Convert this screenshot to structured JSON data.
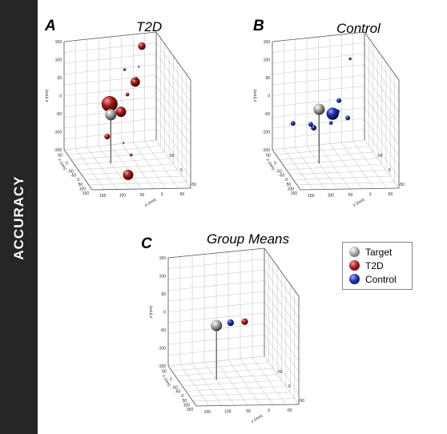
{
  "side_label": "ACCURACY",
  "colors": {
    "target": "#a9a9a9",
    "t2d": "#a81a1a",
    "control": "#1f2fa8",
    "sidebar": "#262626"
  },
  "legend": [
    {
      "label": "Target",
      "color": "#a9a9a9"
    },
    {
      "label": "T2D",
      "color": "#a81a1a"
    },
    {
      "label": "Control",
      "color": "#1f2fa8"
    }
  ],
  "chart_data": [
    {
      "type": "scatter",
      "panel": "A",
      "title": "T2D",
      "zlabel": "z (mm)",
      "ylabel": "y (mm)",
      "xlabel": "x (mm)",
      "zlim": [
        -150,
        150
      ],
      "z_ticks": [
        "150",
        "100",
        "50",
        "0",
        "-50",
        "-100",
        "-150"
      ],
      "x_ticks": [
        "50",
        "0",
        "-50"
      ],
      "y_ticks": [
        "150",
        "100",
        "50",
        "0",
        "-50"
      ],
      "grid": true,
      "series": [
        {
          "name": "T2D",
          "points": [
            {
              "x": 120,
              "y": 50,
              "z": 115,
              "size": 8
            },
            {
              "x": 80,
              "y": 20,
              "z": 38,
              "size": 4
            },
            {
              "x": 95,
              "y": 25,
              "z": 20,
              "size": 10
            },
            {
              "x": 110,
              "y": -10,
              "z": 55,
              "size": 3
            },
            {
              "x": 100,
              "y": 0,
              "z": -15,
              "size": 4
            },
            {
              "x": 60,
              "y": -40,
              "z": -40,
              "size": 11
            },
            {
              "x": 80,
              "y": 30,
              "z": 70,
              "size": 2
            },
            {
              "x": 10,
              "y": -100,
              "z": 10,
              "size": 17
            },
            {
              "x": -30,
              "y": -70,
              "z": -80,
              "size": 2
            },
            {
              "x": 30,
              "y": -100,
              "z": -90,
              "size": 6
            },
            {
              "x": -20,
              "y": -40,
              "z": -120,
              "size": 3
            },
            {
              "x": -20,
              "y": -50,
              "z": -175,
              "size": 11
            }
          ]
        },
        {
          "name": "Target",
          "points": [
            {
              "x": 0,
              "y": -100,
              "z": -15,
              "size": 12
            }
          ]
        }
      ]
    },
    {
      "type": "scatter",
      "panel": "B",
      "title": "Control",
      "zlabel": "z (mm)",
      "ylabel": "y (mm)",
      "xlabel": "x (mm)",
      "zlim": [
        -150,
        150
      ],
      "z_ticks": [
        "150",
        "100",
        "50",
        "0",
        "-50",
        "-100",
        "-150"
      ],
      "x_ticks": [
        "50",
        "0",
        "-50"
      ],
      "y_ticks": [
        "150",
        "100",
        "50",
        "0",
        "-50"
      ],
      "grid": true,
      "series": [
        {
          "name": "Control",
          "points": [
            {
              "x": 100,
              "y": 50,
              "z": 80,
              "size": 3
            },
            {
              "x": 30,
              "y": -20,
              "z": 5,
              "size": 5
            },
            {
              "x": 20,
              "y": -30,
              "z": -20,
              "size": 5
            },
            {
              "x": 10,
              "y": -50,
              "z": -20,
              "size": 13
            },
            {
              "x": 0,
              "y": -60,
              "z": -40,
              "size": 4
            },
            {
              "x": 30,
              "y": 10,
              "z": -45,
              "size": 5
            },
            {
              "x": 20,
              "y": -110,
              "z": -60,
              "size": 6
            },
            {
              "x": 20,
              "y": -120,
              "z": -50,
              "size": 5
            },
            {
              "x": -30,
              "y": -200,
              "z": -20,
              "size": 5
            }
          ]
        },
        {
          "name": "Target",
          "points": [
            {
              "x": 0,
              "y": -100,
              "z": 0,
              "size": 12
            }
          ]
        }
      ]
    },
    {
      "type": "scatter",
      "panel": "C",
      "title": "Group Means",
      "zlabel": "z (mm)",
      "ylabel": "y (mm)",
      "xlabel": "x (mm)",
      "zlim": [
        -150,
        150
      ],
      "z_ticks": [
        "150",
        "100",
        "50",
        "0",
        "-50",
        "-100",
        "-150"
      ],
      "x_ticks": [
        "50",
        "0",
        "-50"
      ],
      "y_ticks": [
        "150",
        "100",
        "50",
        "0",
        "-50"
      ],
      "grid": true,
      "series": [
        {
          "name": "T2D",
          "points": [
            {
              "x": 20,
              "y": 0,
              "z": -5,
              "size": 7
            }
          ]
        },
        {
          "name": "Control",
          "points": [
            {
              "x": 10,
              "y": -50,
              "z": 0,
              "size": 7
            }
          ]
        },
        {
          "name": "Target",
          "points": [
            {
              "x": 0,
              "y": -100,
              "z": 0,
              "size": 12
            }
          ]
        }
      ]
    }
  ]
}
